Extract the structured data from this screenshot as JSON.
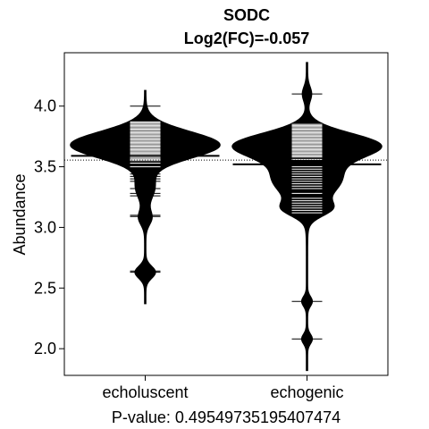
{
  "chart_data": {
    "type": "beanplot",
    "title": "SODC",
    "subtitle": "Log2(FC)=-0.057",
    "ylabel": "Abundance",
    "xlabel": "P-value: 0.49549735195407474",
    "categories": [
      "echoluscent",
      "echogenic"
    ],
    "ylim": [
      1.78,
      4.44
    ],
    "yticks": [
      2.0,
      2.5,
      3.0,
      3.5,
      4.0
    ],
    "ytick_labels": [
      "2.0",
      "2.5",
      "3.0",
      "3.5",
      "4.0"
    ],
    "overall_mean": 3.555,
    "series": [
      {
        "group_mean": 3.59,
        "density_range": [
          2.37,
          4.13
        ],
        "density_peaks": [
          {
            "center": 3.68,
            "spread": 0.11,
            "weight": 1.0
          },
          {
            "center": 3.33,
            "spread": 0.1,
            "weight": 0.12
          },
          {
            "center": 3.08,
            "spread": 0.06,
            "weight": 0.08
          },
          {
            "center": 2.63,
            "spread": 0.05,
            "weight": 0.13
          }
        ],
        "observations": [
          4.0,
          3.87,
          3.86,
          3.85,
          3.84,
          3.83,
          3.82,
          3.81,
          3.8,
          3.79,
          3.78,
          3.77,
          3.76,
          3.75,
          3.74,
          3.73,
          3.72,
          3.71,
          3.7,
          3.69,
          3.68,
          3.67,
          3.66,
          3.65,
          3.64,
          3.63,
          3.62,
          3.61,
          3.6,
          3.59,
          3.58,
          3.57,
          3.56,
          3.55,
          3.53,
          3.5,
          3.47,
          3.44,
          3.42,
          3.4,
          3.38,
          3.32,
          3.28,
          3.26,
          3.1,
          3.09,
          2.64,
          2.63
        ]
      },
      {
        "group_mean": 3.52,
        "density_range": [
          1.82,
          4.36
        ],
        "density_peaks": [
          {
            "center": 3.68,
            "spread": 0.1,
            "weight": 1.0
          },
          {
            "center": 3.4,
            "spread": 0.15,
            "weight": 0.5
          },
          {
            "center": 3.15,
            "spread": 0.06,
            "weight": 0.25
          },
          {
            "center": 4.1,
            "spread": 0.06,
            "weight": 0.06
          },
          {
            "center": 2.39,
            "spread": 0.04,
            "weight": 0.07
          },
          {
            "center": 2.08,
            "spread": 0.04,
            "weight": 0.07
          }
        ],
        "observations": [
          4.1,
          3.86,
          3.85,
          3.84,
          3.83,
          3.82,
          3.81,
          3.8,
          3.79,
          3.78,
          3.77,
          3.76,
          3.75,
          3.74,
          3.73,
          3.72,
          3.71,
          3.7,
          3.69,
          3.68,
          3.67,
          3.66,
          3.65,
          3.64,
          3.63,
          3.62,
          3.61,
          3.6,
          3.59,
          3.58,
          3.56,
          3.5,
          3.48,
          3.46,
          3.44,
          3.42,
          3.4,
          3.38,
          3.36,
          3.34,
          3.32,
          3.28,
          3.24,
          3.22,
          3.2,
          3.18,
          3.16,
          3.14,
          3.12,
          2.39,
          2.08
        ]
      }
    ]
  }
}
